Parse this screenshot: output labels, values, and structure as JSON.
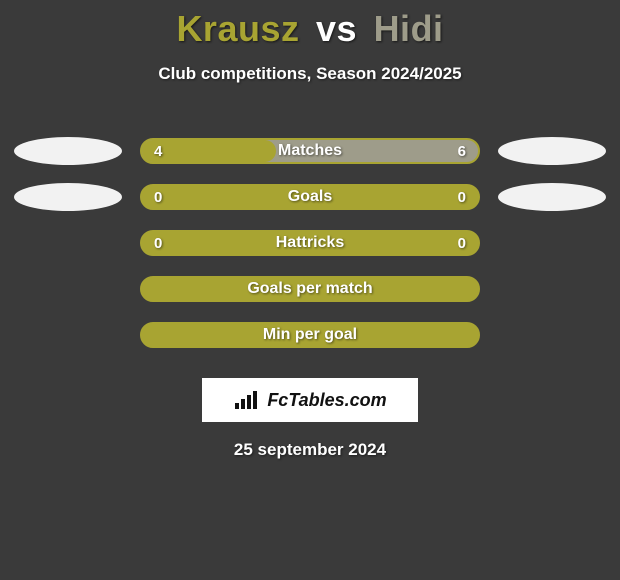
{
  "background_color": "#3a3a3a",
  "title": {
    "player1": "Krausz",
    "player1_color": "#a8a432",
    "vs": "vs",
    "vs_color": "#ffffff",
    "player2": "Hidi",
    "player2_color": "#9e9c8a",
    "fontsize": 36
  },
  "subtitle": "Club competitions, Season 2024/2025",
  "stats": [
    {
      "label": "Matches",
      "left_value": "4",
      "right_value": "6",
      "bar_fill_color": "#a8a432",
      "bar_border_color": "#a8a432",
      "bar_bg_color": "#9e9c8a",
      "left_fill_pct": 40,
      "left_ellipse": "#f2f2f2",
      "right_ellipse": "#f2f2f2"
    },
    {
      "label": "Goals",
      "left_value": "0",
      "right_value": "0",
      "bar_fill_color": "#a8a432",
      "bar_border_color": "#a8a432",
      "bar_bg_color": "#a8a432",
      "left_fill_pct": 100,
      "left_ellipse": "#f2f2f2",
      "right_ellipse": "#f2f2f2"
    },
    {
      "label": "Hattricks",
      "left_value": "0",
      "right_value": "0",
      "bar_fill_color": "#a8a432",
      "bar_border_color": "#a8a432",
      "bar_bg_color": "#a8a432",
      "left_fill_pct": 100,
      "left_ellipse": null,
      "right_ellipse": null
    },
    {
      "label": "Goals per match",
      "left_value": "",
      "right_value": "",
      "bar_fill_color": "#a8a432",
      "bar_border_color": "#a8a432",
      "bar_bg_color": "#a8a432",
      "left_fill_pct": 100,
      "left_ellipse": null,
      "right_ellipse": null
    },
    {
      "label": "Min per goal",
      "left_value": "",
      "right_value": "",
      "bar_fill_color": "#a8a432",
      "bar_border_color": "#a8a432",
      "bar_bg_color": "#a8a432",
      "left_fill_pct": 100,
      "left_ellipse": null,
      "right_ellipse": null
    }
  ],
  "logo_text": "FcTables.com",
  "date": "25 september 2024",
  "colors": {
    "accent": "#a8a432",
    "neutral": "#9e9c8a",
    "ellipse": "#f2f2f2",
    "text": "#ffffff"
  }
}
